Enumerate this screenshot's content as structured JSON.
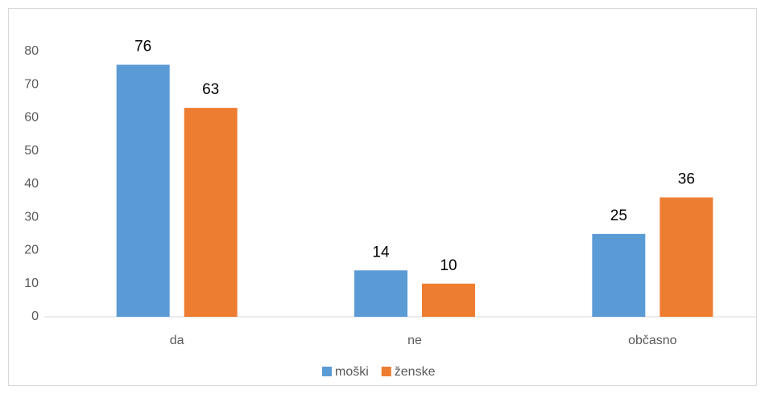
{
  "chart_data": {
    "type": "bar",
    "categories": [
      "da",
      "ne",
      "občasno"
    ],
    "series": [
      {
        "name": "moški",
        "color": "#5b9bd5",
        "values": [
          76,
          14,
          25
        ]
      },
      {
        "name": "ženske",
        "color": "#ed7d31",
        "values": [
          63,
          10,
          36
        ]
      }
    ],
    "ylim": [
      0,
      80
    ],
    "yticks": [
      0,
      10,
      20,
      30,
      40,
      50,
      60,
      70,
      80
    ],
    "legend": "bottom",
    "grid": false
  }
}
